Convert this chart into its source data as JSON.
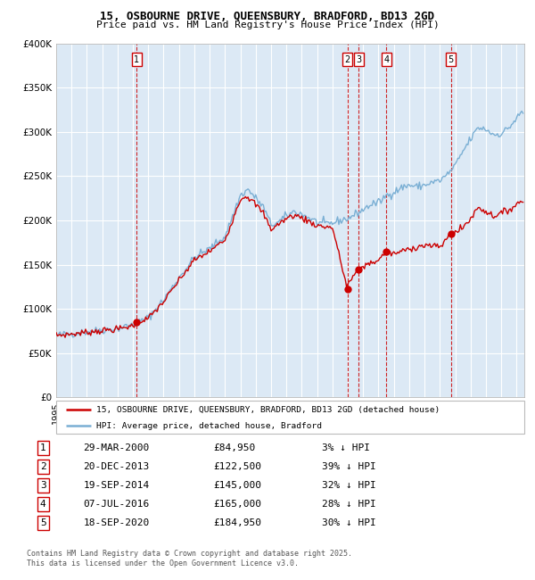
{
  "title_line1": "15, OSBOURNE DRIVE, QUEENSBURY, BRADFORD, BD13 2GD",
  "title_line2": "Price paid vs. HM Land Registry's House Price Index (HPI)",
  "legend_label_red": "15, OSBOURNE DRIVE, QUEENSBURY, BRADFORD, BD13 2GD (detached house)",
  "legend_label_blue": "HPI: Average price, detached house, Bradford",
  "footer_line1": "Contains HM Land Registry data © Crown copyright and database right 2025.",
  "footer_line2": "This data is licensed under the Open Government Licence v3.0.",
  "sales": [
    {
      "num": 1,
      "date": "29-MAR-2000",
      "price": "£84,950",
      "pct": "3% ↓ HPI"
    },
    {
      "num": 2,
      "date": "20-DEC-2013",
      "price": "£122,500",
      "pct": "39% ↓ HPI"
    },
    {
      "num": 3,
      "date": "19-SEP-2014",
      "price": "£145,000",
      "pct": "32% ↓ HPI"
    },
    {
      "num": 4,
      "date": "07-JUL-2016",
      "price": "£165,000",
      "pct": "28% ↓ HPI"
    },
    {
      "num": 5,
      "date": "18-SEP-2020",
      "price": "£184,950",
      "pct": "30% ↓ HPI"
    }
  ],
  "sale_x": [
    2000.24,
    2013.97,
    2014.72,
    2016.52,
    2020.72
  ],
  "sale_y": [
    84950,
    122500,
    145000,
    165000,
    184950
  ],
  "ylim": [
    0,
    400000
  ],
  "yticks": [
    0,
    50000,
    100000,
    150000,
    200000,
    250000,
    300000,
    350000,
    400000
  ],
  "ytick_labels": [
    "£0",
    "£50K",
    "£100K",
    "£150K",
    "£200K",
    "£250K",
    "£300K",
    "£350K",
    "£400K"
  ],
  "xlim_start": 1995.0,
  "xlim_end": 2025.5,
  "bg_color": "#dce9f5",
  "red_color": "#cc0000",
  "blue_color": "#7aafd4",
  "grid_color": "#ffffff",
  "vline_color": "#cc0000"
}
